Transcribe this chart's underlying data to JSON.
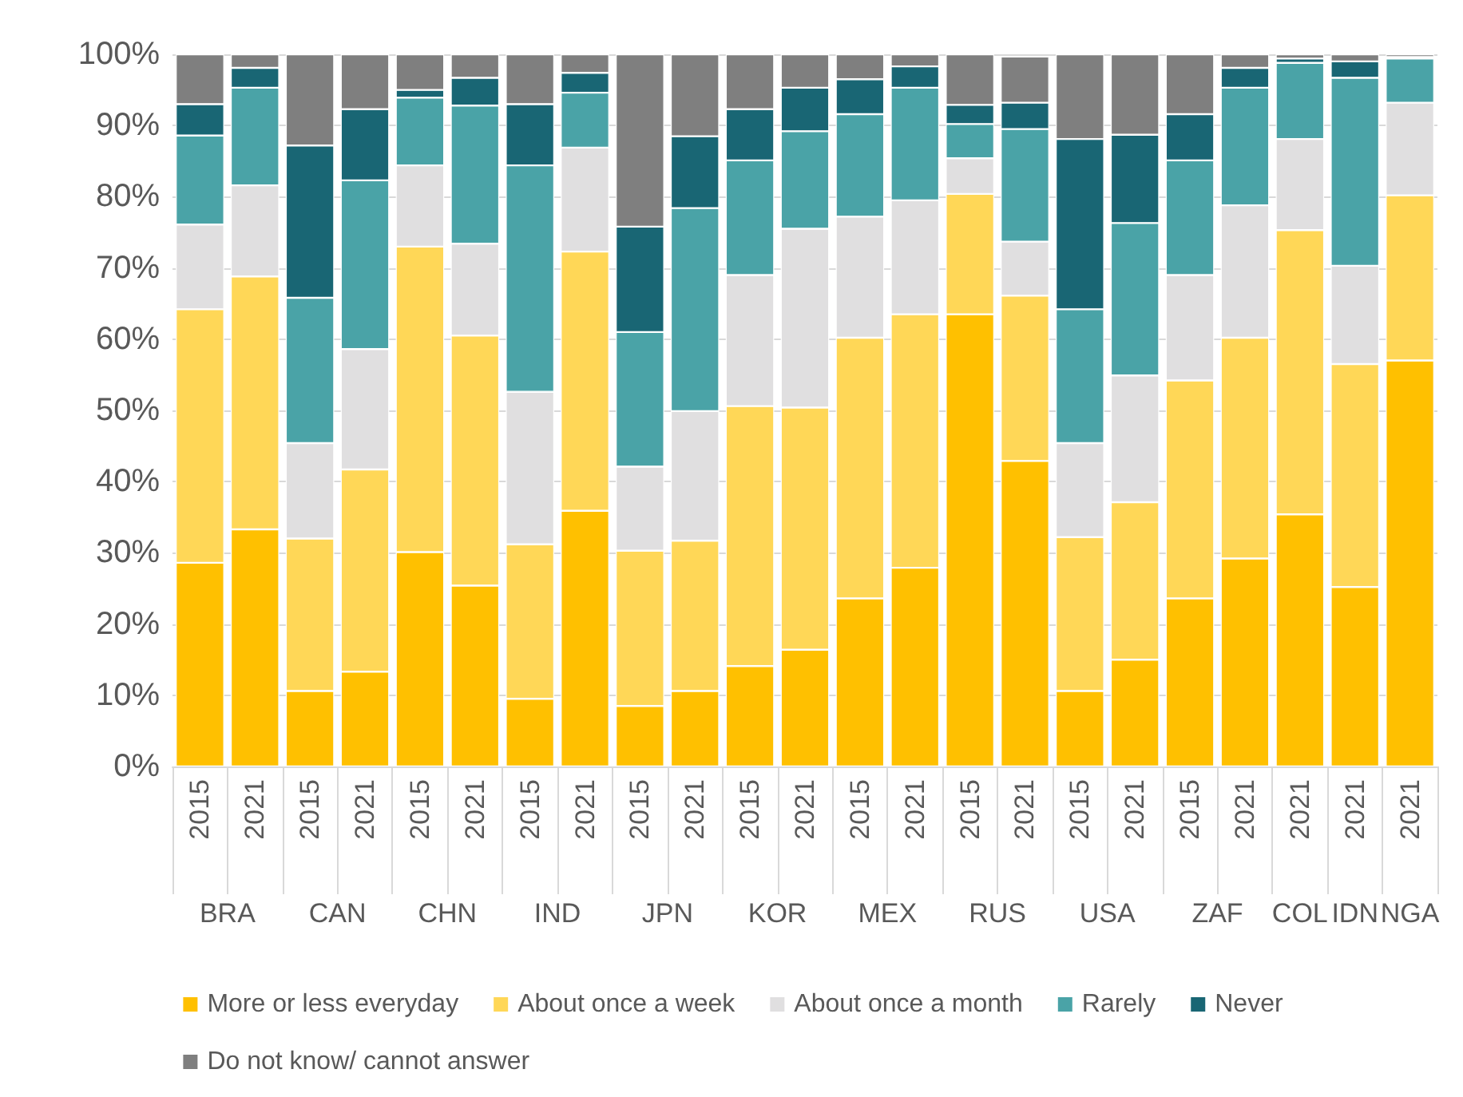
{
  "chart_data": {
    "type": "bar",
    "stacked": true,
    "categories": [
      "2015",
      "2021",
      "2015",
      "2021",
      "2015",
      "2021",
      "2015",
      "2021",
      "2015",
      "2021",
      "2015",
      "2021",
      "2015",
      "2021",
      "2015",
      "2021",
      "2015",
      "2021",
      "2015",
      "2021",
      "2021",
      "2021",
      "2021"
    ],
    "annotations": [
      "BRA",
      "CAN",
      "CHN",
      "IND",
      "JPN",
      "KOR",
      "MEX",
      "RUS",
      "USA",
      "ZAF",
      "COL",
      "IDN",
      "NGA"
    ],
    "series": [
      {
        "name": "More or less everyday",
        "color": "#ffc000",
        "values": [
          28.6,
          33.3,
          10.6,
          13.3,
          30.1,
          25.4,
          9.5,
          35.9,
          8.5,
          10.6,
          14.1,
          16.4,
          23.6,
          27.9,
          63.5,
          42.9,
          10.6,
          15.0,
          23.6,
          29.2,
          35.4,
          25.2,
          57.0
        ]
      },
      {
        "name": "About once a week",
        "color": "#ffd757",
        "values": [
          35.6,
          35.5,
          21.4,
          28.4,
          42.9,
          35.1,
          21.7,
          36.4,
          21.8,
          21.1,
          36.5,
          34.0,
          36.6,
          35.6,
          16.9,
          23.2,
          21.6,
          22.1,
          30.6,
          31.0,
          39.9,
          31.3,
          23.2
        ]
      },
      {
        "name": "About once a month",
        "color": "#e0dfe0",
        "values": [
          11.9,
          12.8,
          13.4,
          16.9,
          11.4,
          12.9,
          21.4,
          14.6,
          11.8,
          18.2,
          18.4,
          25.1,
          17.0,
          16.0,
          5.0,
          7.6,
          13.2,
          17.8,
          14.8,
          18.6,
          12.8,
          13.8,
          13.0
        ]
      },
      {
        "name": "Rarely",
        "color": "#4aa3a7",
        "values": [
          12.5,
          13.7,
          20.4,
          23.7,
          9.5,
          19.4,
          31.8,
          7.7,
          18.9,
          28.5,
          16.1,
          13.7,
          14.4,
          15.8,
          4.8,
          15.8,
          18.8,
          21.4,
          16.1,
          16.5,
          10.7,
          26.4,
          6.2
        ]
      },
      {
        "name": "Never",
        "color": "#196674",
        "values": [
          4.4,
          2.8,
          21.4,
          10.0,
          1.1,
          3.9,
          8.6,
          2.8,
          14.8,
          10.1,
          7.2,
          6.1,
          4.9,
          3.0,
          2.7,
          3.7,
          23.9,
          12.4,
          6.5,
          2.8,
          0.6,
          2.3,
          0.2
        ]
      },
      {
        "name": "Do not know/ cannot answer",
        "color": "#7f7f7f",
        "values": [
          7.0,
          1.9,
          12.8,
          7.7,
          5.0,
          3.3,
          7.0,
          2.6,
          24.2,
          11.5,
          7.7,
          4.7,
          3.5,
          1.7,
          7.1,
          6.5,
          11.9,
          11.3,
          8.4,
          1.9,
          0.6,
          1.0,
          0.4
        ]
      }
    ],
    "ylim": [
      0,
      100
    ],
    "yticks": [
      {
        "value": 0,
        "label": "0%"
      },
      {
        "value": 10,
        "label": "10%"
      },
      {
        "value": 20,
        "label": "20%"
      },
      {
        "value": 30,
        "label": "30%"
      },
      {
        "value": 40,
        "label": "40%"
      },
      {
        "value": 50,
        "label": "50%"
      },
      {
        "value": 60,
        "label": "60%"
      },
      {
        "value": 70,
        "label": "70%"
      },
      {
        "value": 80,
        "label": "80%"
      },
      {
        "value": 90,
        "label": "90%"
      },
      {
        "value": 100,
        "label": "100%"
      }
    ],
    "grid": "y",
    "legend": "bottom"
  }
}
